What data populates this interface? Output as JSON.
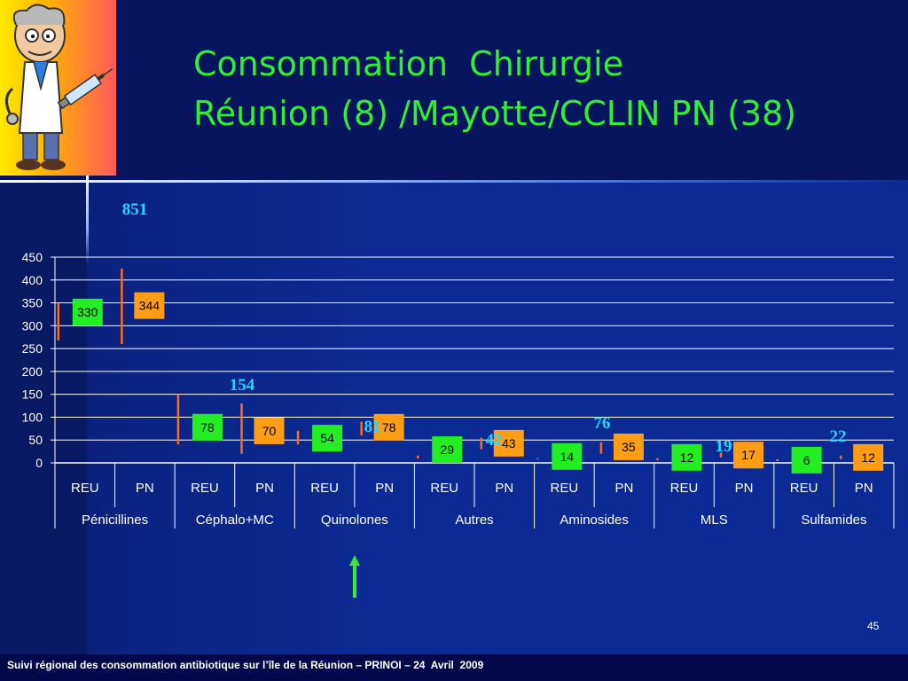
{
  "slide": {
    "title_line1": "Consommation  Chirurgie",
    "title_line2": "Réunion (8) /Mayotte/CCLIN PN (38)",
    "page_number": "45",
    "footer": "Suivi régional des consommation antibiotique sur l’île de la Réunion – PRINOI – 24  Avril  2009",
    "logo": "cartoon-doctor-with-syringe"
  },
  "chart_data": {
    "type": "bar",
    "groups": [
      "Pénicillines",
      "Céphalo+MC",
      "Quinolones",
      "Autres",
      "Aminosides",
      "MLS",
      "Sulfamides"
    ],
    "categories": [
      "REU",
      "PN",
      "REU",
      "PN",
      "REU",
      "PN",
      "REU",
      "PN",
      "REU",
      "PN",
      "REU",
      "PN",
      "REU",
      "PN"
    ],
    "values": [
      330,
      344,
      78,
      70,
      54,
      78,
      29,
      43,
      14,
      35,
      12,
      17,
      6,
      12
    ],
    "range_low": [
      268,
      260,
      40,
      20,
      40,
      60,
      10,
      30,
      8,
      20,
      6,
      12,
      4,
      8
    ],
    "range_high": [
      350,
      425,
      150,
      130,
      70,
      90,
      16,
      55,
      10,
      45,
      10,
      22,
      8,
      16
    ],
    "series": [
      {
        "name": "REU",
        "color": "#22ee22"
      },
      {
        "name": "PN",
        "color": "#ff9e14"
      }
    ],
    "max_labels": [
      {
        "text": "851",
        "group": 0
      },
      {
        "text": "154",
        "group": 1
      },
      {
        "text": "81",
        "group": 2
      },
      {
        "text": "42",
        "group": 3
      },
      {
        "text": "76",
        "group": 4
      },
      {
        "text": "19",
        "group": 5
      },
      {
        "text": "22",
        "group": 6
      }
    ],
    "yticks": [
      "0",
      "50",
      "100",
      "150",
      "200",
      "250",
      "300",
      "350",
      "400",
      "450"
    ],
    "ylim": [
      0,
      450
    ],
    "grid": true,
    "title": "",
    "xlabel": "",
    "ylabel": ""
  }
}
